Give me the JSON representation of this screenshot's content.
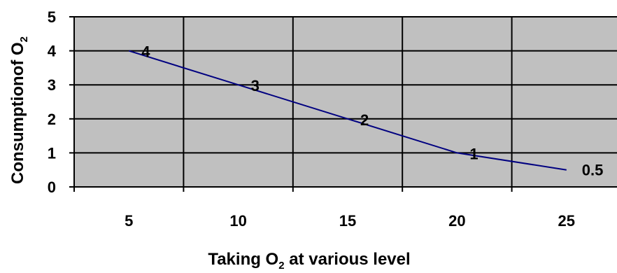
{
  "chart_data": {
    "type": "line",
    "title": "",
    "xlabel": "Taking O",
    "xlabel_sub": "2",
    "xlabel_rest": " at various level",
    "ylabel": "Consumptionof O",
    "ylabel_sub": "2",
    "x_ticks": [
      "5",
      "10",
      "15",
      "20",
      "25"
    ],
    "y_ticks": [
      "0",
      "1",
      "2",
      "3",
      "4",
      "5"
    ],
    "ylim": [
      0,
      5
    ],
    "grid": true,
    "legend": "none",
    "series": [
      {
        "x": [
          "5",
          "10",
          "15",
          "20",
          "25"
        ],
        "values": [
          4,
          3,
          2,
          1,
          0.5
        ],
        "point_labels": [
          "4",
          "3",
          "2",
          "1",
          "0.5"
        ]
      }
    ],
    "colors": {
      "plot_background": "#c0c0c0",
      "line": "#000080",
      "grid": "#000000"
    }
  }
}
